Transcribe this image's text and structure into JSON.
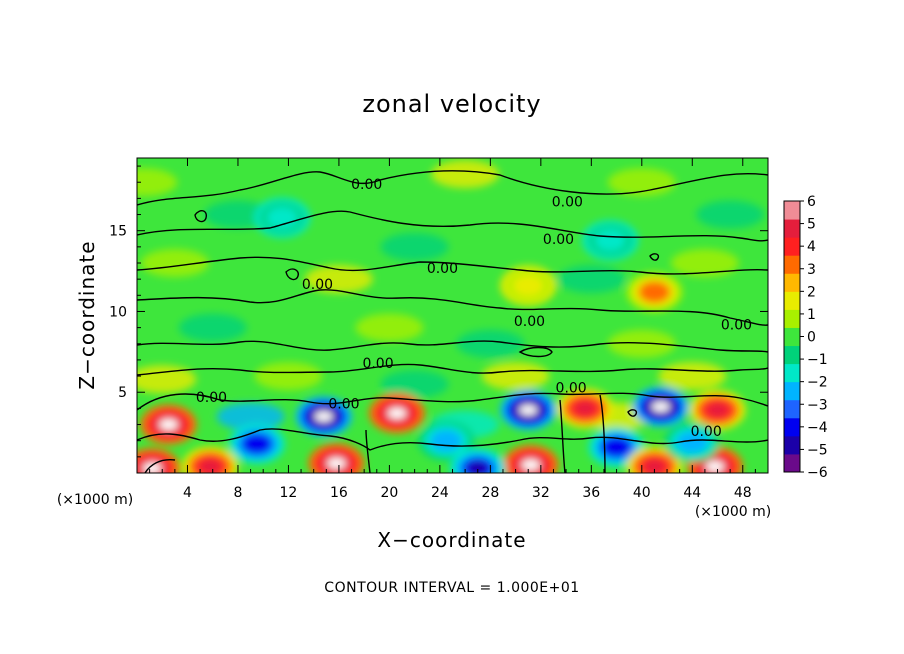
{
  "chart_data": {
    "type": "heatmap",
    "title": "zonal velocity",
    "xlabel": "X−coordinate",
    "ylabel": "Z−coordinate",
    "x_unit": "(×1000 m)",
    "y_unit": "(×1000 m)",
    "xlim": [
      0,
      50
    ],
    "ylim": [
      0,
      19.5
    ],
    "x_ticks": [
      4,
      8,
      12,
      16,
      20,
      24,
      28,
      32,
      36,
      40,
      44,
      48
    ],
    "x_tick_labels": [
      "4",
      "8",
      "12",
      "16",
      "20",
      "24",
      "28",
      "32",
      "36",
      "40",
      "44",
      "48"
    ],
    "y_ticks": [
      5,
      10,
      15
    ],
    "y_tick_labels": [
      "5",
      "10",
      "15"
    ],
    "colorbar": {
      "min": -6,
      "max": 6,
      "ticks": [
        6,
        5,
        4,
        3,
        2,
        1,
        0,
        -1,
        -2,
        -3,
        -4,
        -5,
        -6
      ],
      "tick_labels": [
        "6",
        "5",
        "4",
        "3",
        "2",
        "1",
        "0",
        "−1",
        "−2",
        "−3",
        "−4",
        "−5",
        "−6"
      ],
      "colors": [
        "#6a0a8a",
        "#1b00a8",
        "#0000f0",
        "#1e64ff",
        "#00b4ff",
        "#00e8c8",
        "#00d27a",
        "#3ee63c",
        "#a8f000",
        "#e8ec00",
        "#ffb800",
        "#ff6a00",
        "#ff2020",
        "#e41e3c",
        "#f08c96"
      ]
    },
    "contour_level": 0.0,
    "contour_labels": [
      {
        "text": "0.00",
        "x": 18.2,
        "z": 17.9
      },
      {
        "text": "0.00",
        "x": 34.1,
        "z": 16.8
      },
      {
        "text": "0.00",
        "x": 33.4,
        "z": 14.5
      },
      {
        "text": "0.00",
        "x": 24.2,
        "z": 12.7
      },
      {
        "text": "0.00",
        "x": 14.3,
        "z": 11.7
      },
      {
        "text": "0.00",
        "x": 31.1,
        "z": 9.4
      },
      {
        "text": "0.00",
        "x": 47.5,
        "z": 9.2
      },
      {
        "text": "0.00",
        "x": 19.1,
        "z": 6.8
      },
      {
        "text": "0.00",
        "x": 34.4,
        "z": 5.3
      },
      {
        "text": "0.00",
        "x": 5.9,
        "z": 4.7
      },
      {
        "text": "0.00",
        "x": 16.4,
        "z": 4.3
      },
      {
        "text": "0.00",
        "x": 45.1,
        "z": 2.6
      }
    ],
    "features": [
      {
        "x": 2.5,
        "z": 3.0,
        "value": 6
      },
      {
        "x": 1.2,
        "z": 0.3,
        "value": 6
      },
      {
        "x": 14.8,
        "z": 3.5,
        "value": -6
      },
      {
        "x": 15.8,
        "z": 0.6,
        "value": 6
      },
      {
        "x": 20.6,
        "z": 3.7,
        "value": 6
      },
      {
        "x": 5.8,
        "z": 0.4,
        "value": 5
      },
      {
        "x": 9.5,
        "z": 1.8,
        "value": -4
      },
      {
        "x": 31.0,
        "z": 3.9,
        "value": -6
      },
      {
        "x": 31.2,
        "z": 0.5,
        "value": 6
      },
      {
        "x": 35.5,
        "z": 4.0,
        "value": 5
      },
      {
        "x": 38.0,
        "z": 1.6,
        "value": -4
      },
      {
        "x": 41.5,
        "z": 4.1,
        "value": -6
      },
      {
        "x": 41.0,
        "z": 0.4,
        "value": 5
      },
      {
        "x": 46.0,
        "z": 3.9,
        "value": 5
      },
      {
        "x": 45.8,
        "z": 0.4,
        "value": 6
      },
      {
        "x": 24.5,
        "z": 2.0,
        "value": -3
      },
      {
        "x": 27.0,
        "z": 0.3,
        "value": -5
      },
      {
        "x": 44.0,
        "z": 1.9,
        "value": -3
      },
      {
        "x": 11.5,
        "z": 15.8,
        "value": -2
      },
      {
        "x": 31.0,
        "z": 11.6,
        "value": 2
      },
      {
        "x": 41.0,
        "z": 11.2,
        "value": 3
      },
      {
        "x": 37.5,
        "z": 14.4,
        "value": -2
      }
    ]
  },
  "footer": {
    "contour_interval": "CONTOUR INTERVAL = 1.000E+01"
  }
}
